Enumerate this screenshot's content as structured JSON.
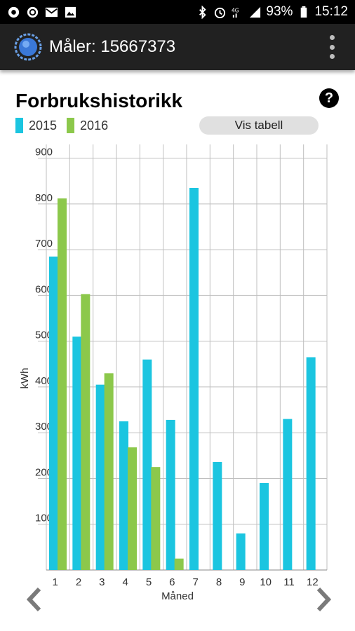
{
  "status_bar": {
    "battery": "93%",
    "time": "15:12",
    "left_icons": [
      "record-icon",
      "record-icon",
      "mail-icon",
      "image-icon"
    ],
    "right_icons": [
      "bluetooth-icon",
      "alarm-icon",
      "4g-icon",
      "signal-icon",
      "battery-icon"
    ]
  },
  "app_bar": {
    "title": "Måler: 15667373",
    "logo_icon": "globe-logo-icon",
    "menu_icon": "overflow-menu-icon"
  },
  "page": {
    "title": "Forbrukshistorikk",
    "help_label": "?",
    "table_button": "Vis tabell"
  },
  "colors": {
    "series_2015": "#1bc5e0",
    "series_2016": "#8cc84b",
    "grid": "#bfbfbf"
  },
  "chart_data": {
    "type": "bar",
    "title": "Forbrukshistorikk",
    "xlabel": "Måned",
    "ylabel": "kWh",
    "categories": [
      "1",
      "2",
      "3",
      "4",
      "5",
      "6",
      "7",
      "8",
      "9",
      "10",
      "11",
      "12"
    ],
    "series": [
      {
        "name": "2015",
        "values": [
          685,
          510,
          405,
          325,
          460,
          328,
          835,
          236,
          80,
          190,
          330,
          465
        ]
      },
      {
        "name": "2016",
        "values": [
          812,
          603,
          430,
          268,
          225,
          25,
          null,
          null,
          null,
          null,
          null,
          null
        ]
      }
    ],
    "yticks": [
      100,
      200,
      300,
      400,
      500,
      600,
      700,
      800,
      900
    ],
    "ylim": [
      0,
      930
    ],
    "grid": true,
    "legend_position": "top-left"
  },
  "navigation": {
    "prev_icon": "chevron-left-icon",
    "next_icon": "chevron-right-icon"
  }
}
